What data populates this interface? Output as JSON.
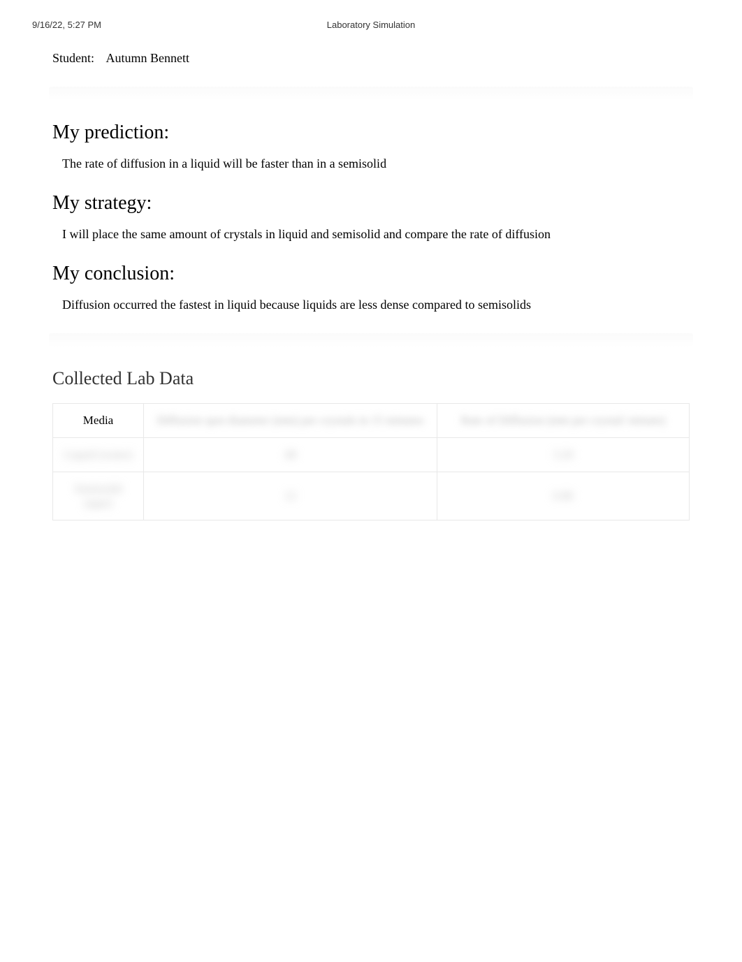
{
  "header": {
    "timestamp": "9/16/22, 5:27 PM",
    "title": "Laboratory Simulation"
  },
  "student": {
    "label": "Student:",
    "name": "Autumn Bennett"
  },
  "sections": {
    "prediction": {
      "heading": "My prediction:",
      "text": "The rate of diffusion in a liquid will be faster than in a semisolid"
    },
    "strategy": {
      "heading": "My strategy:",
      "text": "I will place the same amount of crystals in liquid and semisolid and compare the rate of diffusion"
    },
    "conclusion": {
      "heading": "My conclusion:",
      "text": "Diffusion occurred the fastest in liquid because liquids are less dense compared to semisolids"
    }
  },
  "lab_data": {
    "heading": "Collected Lab Data",
    "columns": [
      "Media",
      "Diffusion spot diameter (mm) per crystals in 15 minutes",
      "Rate of Diffusion (mm per crystal/ minute)"
    ],
    "rows": [
      {
        "media": "Liquid (water)",
        "diameter": "48",
        "rate": "3.20"
      },
      {
        "media": "Semisolid (agar)",
        "diameter": "12",
        "rate": "0.80"
      }
    ]
  },
  "styling": {
    "background_color": "#ffffff",
    "text_color": "#000000",
    "heading_fontsize": 28,
    "body_fontsize": 18,
    "header_fontsize": 13,
    "table_border_color": "#e8e8e8",
    "blur_color": "#c0c0c0",
    "font_family": "Georgia, Times New Roman, serif"
  }
}
